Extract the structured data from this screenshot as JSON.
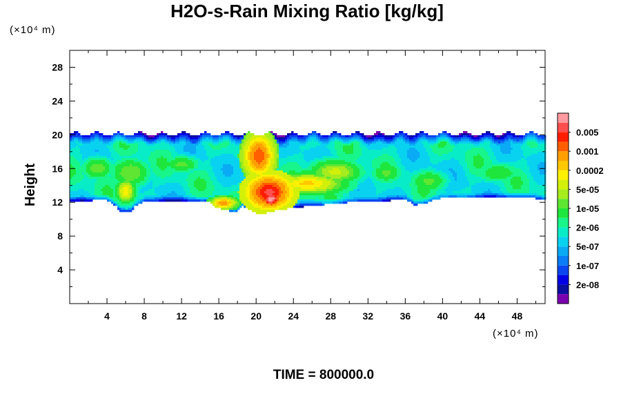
{
  "chart_data": {
    "type": "heatmap",
    "title": "H2O-s-Rain Mixing Ratio [kg/kg]",
    "ylabel": "Height",
    "x_unit": "(×10⁴ m)",
    "y_unit": "(×10⁴ m)",
    "xlim": [
      0,
      51
    ],
    "ylim": [
      0,
      30
    ],
    "x_ticks": [
      4,
      8,
      12,
      16,
      20,
      24,
      28,
      32,
      36,
      40,
      44,
      48
    ],
    "y_ticks": [
      4,
      8,
      12,
      16,
      20,
      24,
      28
    ],
    "colorbar": {
      "labels": [
        "0.005",
        "0.001",
        "0.0002",
        "5e-05",
        "1e-05",
        "2e-06",
        "5e-07",
        "1e-07",
        "2e-08"
      ],
      "levels": [
        5e-09,
        1e-08,
        2e-08,
        5e-08,
        1e-07,
        2e-07,
        5e-07,
        1e-06,
        2e-06,
        5e-06,
        1e-05,
        2e-05,
        5e-05,
        0.0001,
        0.0002,
        0.0005,
        0.001,
        0.002,
        0.005
      ],
      "colors": [
        "#7a00b0",
        "#0a0fa0",
        "#0000e6",
        "#0a46f0",
        "#0a7cf5",
        "#0aaaf5",
        "#08d2f0",
        "#08ecc8",
        "#18f58a",
        "#1ee63c",
        "#5ee632",
        "#a6ec1e",
        "#d2f00a",
        "#fff000",
        "#ffc800",
        "#ffa000",
        "#ff5f00",
        "#ff1e00",
        "#ff5050",
        "#ff9aa0"
      ]
    },
    "field": {
      "description_of_layer": "rain layer between ~10.5 and ~20.5 x10^4 m height",
      "layer_top": 20.1,
      "layer_base_profile": {
        "x": [
          0,
          2,
          4,
          5,
          5.5,
          6.5,
          7,
          8,
          12,
          15,
          15.5,
          17,
          17.8,
          18.5,
          19.8,
          20.5,
          21.5,
          23,
          26,
          30,
          34,
          36,
          37,
          38,
          39,
          40,
          44,
          48,
          51
        ],
        "base": [
          12.1,
          12.2,
          12.3,
          11.5,
          10.9,
          10.9,
          11.5,
          12.2,
          12.2,
          12.1,
          11.4,
          11.0,
          10.9,
          11.6,
          10.8,
          10.6,
          10.9,
          11.2,
          11.6,
          12.0,
          12.2,
          12.3,
          11.7,
          11.8,
          12.3,
          12.5,
          12.5,
          12.6,
          12.4
        ]
      },
      "background_log10": -6.2,
      "features": [
        {
          "x": 20.3,
          "y": 17.5,
          "rx": 1.6,
          "ry": 2.5,
          "peak_log10": -3.0
        },
        {
          "x": 21.4,
          "y": 13.2,
          "rx": 2.4,
          "ry": 2.0,
          "peak_log10": -2.6
        },
        {
          "x": 21.6,
          "y": 12.4,
          "rx": 0.9,
          "ry": 0.8,
          "peak_log10": -2.0
        },
        {
          "x": 25.5,
          "y": 14.2,
          "rx": 4.0,
          "ry": 1.3,
          "peak_log10": -3.9
        },
        {
          "x": 28.5,
          "y": 15.6,
          "rx": 3.5,
          "ry": 1.8,
          "peak_log10": -4.6
        },
        {
          "x": 16.5,
          "y": 11.9,
          "rx": 1.4,
          "ry": 0.7,
          "peak_log10": -3.4
        },
        {
          "x": 6.0,
          "y": 13.3,
          "rx": 1.1,
          "ry": 1.5,
          "peak_log10": -4.1
        },
        {
          "x": 6.5,
          "y": 15.5,
          "rx": 3.0,
          "ry": 2.5,
          "peak_log10": -5.0
        },
        {
          "x": 3.0,
          "y": 16.0,
          "rx": 2.5,
          "ry": 2.0,
          "peak_log10": -5.1
        },
        {
          "x": 12.0,
          "y": 16.5,
          "rx": 3.0,
          "ry": 1.5,
          "peak_log10": -5.2
        },
        {
          "x": 38.5,
          "y": 14.5,
          "rx": 3.0,
          "ry": 2.0,
          "peak_log10": -5.2
        },
        {
          "x": 34.0,
          "y": 15.5,
          "rx": 2.5,
          "ry": 1.8,
          "peak_log10": -5.2
        },
        {
          "x": 46.0,
          "y": 15.5,
          "rx": 4.0,
          "ry": 2.0,
          "peak_log10": -5.4
        }
      ]
    }
  },
  "footer": {
    "time_text": "TIME = 800000.0"
  }
}
